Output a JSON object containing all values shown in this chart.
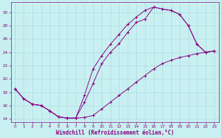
{
  "xlabel": "Windchill (Refroidissement éolien,°C)",
  "background_color": "#c8f0f0",
  "line_color": "#880088",
  "grid_color": "#aadddd",
  "xlim": [
    -0.5,
    23.5
  ],
  "ylim": [
    13.5,
    31.5
  ],
  "xticks": [
    0,
    1,
    2,
    3,
    4,
    5,
    6,
    7,
    8,
    9,
    10,
    11,
    12,
    13,
    14,
    15,
    16,
    17,
    18,
    19,
    20,
    21,
    22,
    23
  ],
  "yticks": [
    14,
    16,
    18,
    20,
    22,
    24,
    26,
    28,
    30
  ],
  "curve1_x": [
    0,
    1,
    2,
    3,
    4,
    5,
    6,
    7,
    8,
    9,
    10,
    11,
    12,
    13,
    14,
    15,
    16,
    17,
    18,
    19,
    20,
    21,
    22,
    23
  ],
  "curve1_y": [
    18.5,
    17.0,
    16.2,
    16.0,
    15.2,
    14.3,
    14.1,
    14.1,
    16.5,
    19.3,
    22.3,
    24.0,
    25.3,
    27.0,
    28.5,
    29.0,
    30.8,
    30.5,
    30.3,
    29.7,
    28.0,
    25.2,
    24.0,
    24.2
  ],
  "curve2_x": [
    0,
    1,
    2,
    3,
    4,
    5,
    6,
    7,
    8,
    9,
    10,
    11,
    12,
    13,
    14,
    15,
    16,
    17,
    18,
    19,
    20,
    21,
    22,
    23
  ],
  "curve2_y": [
    18.5,
    17.0,
    16.2,
    16.0,
    15.2,
    14.3,
    14.1,
    14.1,
    17.5,
    21.5,
    23.5,
    25.2,
    26.7,
    28.2,
    29.3,
    30.3,
    30.8,
    30.5,
    30.3,
    29.7,
    28.0,
    25.2,
    24.0,
    24.2
  ],
  "curve3_x": [
    0,
    1,
    2,
    3,
    4,
    5,
    6,
    7,
    8,
    9,
    10,
    11,
    12,
    13,
    14,
    15,
    16,
    17,
    18,
    19,
    20,
    21,
    22,
    23
  ],
  "curve3_y": [
    18.5,
    17.0,
    16.2,
    16.0,
    15.2,
    14.3,
    14.1,
    14.1,
    14.2,
    14.5,
    15.5,
    16.5,
    17.5,
    18.5,
    19.5,
    20.5,
    21.5,
    22.3,
    22.8,
    23.2,
    23.5,
    23.8,
    24.0,
    24.2
  ]
}
